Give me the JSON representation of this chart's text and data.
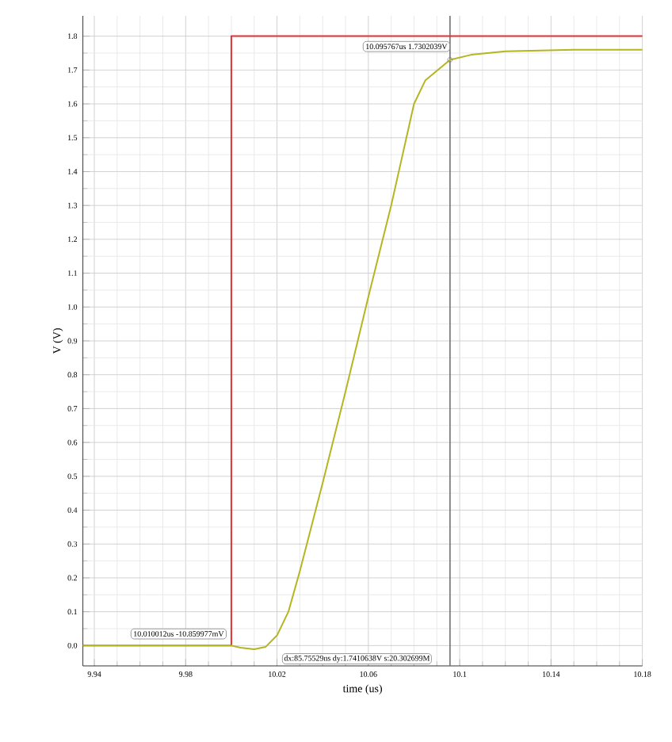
{
  "chart_data": {
    "type": "line",
    "xlabel": "time (us)",
    "ylabel": "V (V)",
    "x": [
      9.935,
      10.0,
      10.004,
      10.010012,
      10.015,
      10.02,
      10.025,
      10.03,
      10.04,
      10.05,
      10.06,
      10.07,
      10.075,
      10.08,
      10.085,
      10.095767,
      10.105,
      10.12,
      10.15,
      10.18
    ],
    "series": [
      {
        "color": "#e53030",
        "x": [
          9.935,
          10.0,
          10.0,
          10.18
        ],
        "values": [
          0.0,
          0.0,
          1.8,
          1.8
        ]
      },
      {
        "color": "#b5b520",
        "values": [
          0.0,
          0.0,
          -0.006,
          -0.011,
          -0.004,
          0.03,
          0.1,
          0.22,
          0.48,
          0.75,
          1.03,
          1.3,
          1.45,
          1.6,
          1.67,
          1.73,
          1.745,
          1.755,
          1.76,
          1.76
        ]
      }
    ],
    "xlim": [
      9.935,
      10.18
    ],
    "ylim": [
      -0.06,
      1.86
    ],
    "xticks": [
      9.94,
      9.98,
      10.02,
      10.06,
      10.1,
      10.14,
      10.18
    ],
    "yticks": [
      {
        "value": 0,
        "label": "0.0"
      },
      0.1,
      0.2,
      0.3,
      0.4,
      0.5,
      0.6,
      0.7,
      0.8,
      0.9,
      {
        "value": 1,
        "label": "1.0"
      },
      1.1,
      1.2,
      1.3,
      1.4,
      1.5,
      1.6,
      1.7,
      1.8
    ],
    "grid": true,
    "marker": "none",
    "line_style": "solid",
    "ref_lines": [
      {
        "axis": "x",
        "value": 10.095767,
        "color": "#707070"
      }
    ],
    "annotations": [
      {
        "text": "10.095767us 1.7302039V",
        "x": 10.095767,
        "y": 1.7302039
      },
      "10.010012us -10.859977mV",
      "dx:85.75529ns dy:1.7410638V s:20.302699M"
    ]
  }
}
